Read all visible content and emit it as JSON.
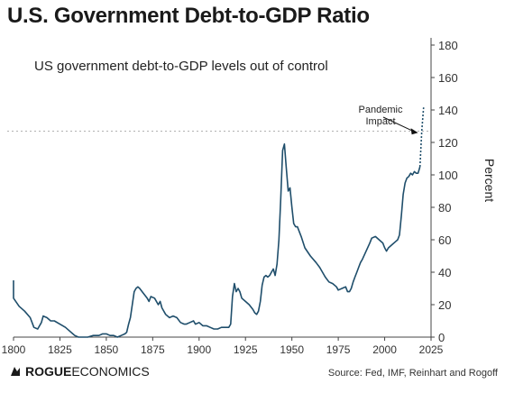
{
  "header": {
    "title": "U.S. Government Debt-to-GDP Ratio"
  },
  "footer": {
    "brand_bold": "ROGUE",
    "brand_rest": " ECONOMICS",
    "source": "Source: Fed, IMF, Reinhart and Rogoff"
  },
  "colors": {
    "line": "#1f4e6b",
    "reference": "#999999",
    "axis": "#444444"
  },
  "chart_data": {
    "type": "line",
    "title": "U.S. Government Debt-to-GDP Ratio",
    "subtitle": "US government debt-to-GDP levels out of control",
    "xlabel": "",
    "ylabel": "Percent",
    "xlim": [
      1800,
      2025
    ],
    "ylim": [
      0,
      180
    ],
    "xticks": [
      1800,
      1825,
      1850,
      1875,
      1900,
      1925,
      1950,
      1975,
      2000,
      2025
    ],
    "yticks": [
      0,
      20,
      40,
      60,
      80,
      100,
      120,
      140,
      160,
      180
    ],
    "y_axis_side": "right",
    "grid": false,
    "reference_line": {
      "y": 127,
      "style": "dashed"
    },
    "annotation": {
      "lines": [
        "Pandemic",
        "Impact"
      ],
      "points_to": [
        2018,
        126
      ]
    },
    "series": [
      {
        "style": "solid",
        "x": [
          1791,
          1795,
          1800,
          1803,
          1806,
          1809,
          1811,
          1813,
          1815,
          1816,
          1818,
          1820,
          1822,
          1825,
          1828,
          1830,
          1832,
          1833,
          1835,
          1838,
          1840,
          1843,
          1846,
          1848,
          1850,
          1852,
          1854,
          1856,
          1858,
          1860,
          1861,
          1862,
          1863,
          1864,
          1865,
          1866,
          1867,
          1868,
          1870,
          1872,
          1873,
          1874,
          1876,
          1878,
          1879,
          1880,
          1882,
          1884,
          1886,
          1888,
          1890,
          1892,
          1893,
          1895,
          1897,
          1898,
          1900,
          1902,
          1904,
          1906,
          1908,
          1910,
          1912,
          1914,
          1916,
          1917,
          1918,
          1919,
          1920,
          1921,
          1922,
          1923,
          1925,
          1927,
          1929,
          1930,
          1931,
          1932,
          1933,
          1934,
          1935,
          1936,
          1937,
          1938,
          1939,
          1940,
          1941,
          1942,
          1943,
          1944,
          1945,
          1946,
          1947,
          1948,
          1949,
          1950,
          1951,
          1952,
          1953,
          1955,
          1957,
          1960,
          1963,
          1965,
          1968,
          1970,
          1972,
          1974,
          1975,
          1977,
          1979,
          1980,
          1981,
          1982,
          1983,
          1984,
          1985,
          1986,
          1987,
          1988,
          1990,
          1992,
          1993,
          1995,
          1997,
          1999,
          2000,
          2001,
          2002,
          2004,
          2006,
          2007,
          2008,
          2009,
          2010,
          2011,
          2012,
          2013,
          2014,
          2015,
          2016,
          2017,
          2018,
          2019
        ],
        "y": [
          35,
          27,
          24,
          19,
          16,
          12,
          6,
          5,
          9,
          13,
          12,
          10,
          10,
          8,
          6,
          4,
          2,
          1,
          0,
          0,
          0,
          1,
          1,
          2,
          2,
          1,
          1,
          0,
          1,
          2,
          3,
          8,
          12,
          20,
          28,
          30,
          31,
          30,
          27,
          24,
          22,
          25,
          24,
          20,
          22,
          18,
          14,
          12,
          13,
          12,
          9,
          8,
          8,
          9,
          10,
          8,
          9,
          7,
          7,
          6,
          5,
          5,
          6,
          6,
          6,
          8,
          25,
          33,
          28,
          30,
          28,
          24,
          22,
          20,
          17,
          15,
          14,
          16,
          22,
          32,
          37,
          38,
          37,
          38,
          40,
          42,
          38,
          45,
          60,
          85,
          115,
          119,
          104,
          90,
          92,
          80,
          70,
          68,
          68,
          62,
          55,
          50,
          46,
          43,
          37,
          34,
          33,
          31,
          29,
          30,
          31,
          28,
          28,
          30,
          34,
          37,
          40,
          43,
          46,
          48,
          53,
          58,
          61,
          62,
          60,
          58,
          55,
          53,
          55,
          57,
          59,
          60,
          63,
          75,
          88,
          95,
          98,
          99,
          101,
          100,
          102,
          101,
          101,
          105
        ]
      },
      {
        "style": "dashed",
        "x": [
          2019,
          2020,
          2021
        ],
        "y": [
          105,
          127,
          142
        ]
      }
    ]
  }
}
